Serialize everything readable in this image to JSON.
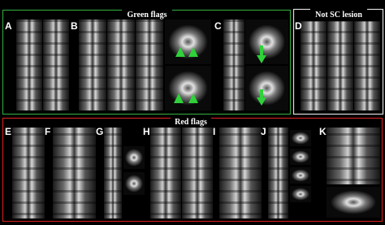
{
  "green_flags": {
    "title": "Green flags",
    "panels": [
      "A",
      "B",
      "C"
    ]
  },
  "not_sc_lesion": {
    "title": "Not SC lesion",
    "panels": [
      "D"
    ]
  },
  "red_flags": {
    "title": "Red flags",
    "panels": [
      "E",
      "F",
      "G",
      "H",
      "I",
      "J",
      "K"
    ]
  }
}
